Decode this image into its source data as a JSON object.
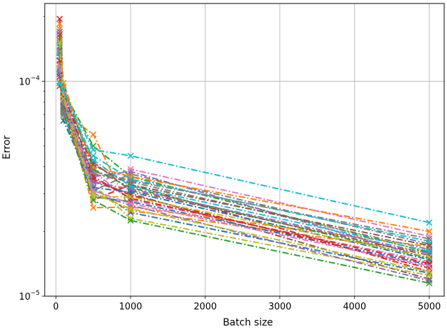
{
  "chart_data": {
    "type": "line",
    "xlabel": "Batch size",
    "ylabel": "Error",
    "x": [
      50,
      100,
      500,
      1000,
      5000
    ],
    "xlim": [
      -150,
      5200
    ],
    "ylim": [
      1e-05,
      0.00023
    ],
    "yscale": "log",
    "grid": true,
    "x_ticks": [
      {
        "value": 0,
        "label": "0"
      },
      {
        "value": 1000,
        "label": "1000"
      },
      {
        "value": 2000,
        "label": "2000"
      },
      {
        "value": 3000,
        "label": "3000"
      },
      {
        "value": 4000,
        "label": "4000"
      },
      {
        "value": 5000,
        "label": "5000"
      }
    ],
    "y_ticks": [
      {
        "value": 1e-05,
        "base": "10",
        "exp": "−5"
      },
      {
        "value": 0.0001,
        "base": "10",
        "exp": "−4"
      }
    ],
    "line_style": "dash-dot",
    "marker": "x",
    "palette": [
      "#1f77b4",
      "#ff7f0e",
      "#2ca02c",
      "#d62728",
      "#9467bd",
      "#8c564b",
      "#e377c2",
      "#7f7f7f",
      "#bcbd22",
      "#17becf"
    ],
    "series": [
      {
        "values": [
          0.000145,
          6.55e-05,
          3.2e-05,
          2.45e-05,
          1.28e-05
        ]
      },
      {
        "values": [
          0.000175,
          7.2e-05,
          5.65e-05,
          2.5e-05,
          1.6e-05
        ]
      },
      {
        "values": [
          0.00014,
          9e-05,
          5e-05,
          3.6e-05,
          1.6e-05
        ]
      },
      {
        "values": [
          0.000195,
          8e-05,
          2.8e-05,
          3.3e-05,
          1.3e-05
        ]
      },
      {
        "values": [
          0.00012,
          8.5e-05,
          3.6e-05,
          3.8e-05,
          1.5e-05
        ]
      },
      {
        "values": [
          0.00013,
          7.6e-05,
          3.4e-05,
          3e-05,
          1.2e-05
        ]
      },
      {
        "values": [
          0.00011,
          8.2e-05,
          3.8e-05,
          2.8e-05,
          1.45e-05
        ]
      },
      {
        "values": [
          0.000125,
          7.8e-05,
          3.1e-05,
          3.7e-05,
          1.75e-05
        ]
      },
      {
        "values": [
          0.0001,
          6.9e-05,
          3.3e-05,
          2.3e-05,
          1.25e-05
        ]
      },
      {
        "values": [
          0.00015,
          8.8e-05,
          4.8e-05,
          4.5e-05,
          2.2e-05
        ]
      },
      {
        "values": [
          0.000135,
          7.4e-05,
          2.9e-05,
          2.75e-05,
          1.4e-05
        ]
      },
      {
        "values": [
          0.00016,
          8.1e-05,
          2.58e-05,
          2.6e-05,
          1.7e-05
        ]
      },
      {
        "values": [
          0.000115,
          9.3e-05,
          3.9e-05,
          3.2e-05,
          1.5e-05
        ]
      },
      {
        "values": [
          0.000105,
          7.7e-05,
          3.5e-05,
          2.95e-05,
          1.35e-05
        ]
      },
      {
        "values": [
          0.00017,
          7e-05,
          3e-05,
          2.65e-05,
          1.18e-05
        ]
      },
      {
        "values": [
          9.5e-05,
          8.6e-05,
          4.2e-05,
          3.1e-05,
          1.55e-05
        ]
      },
      {
        "values": [
          0.00014,
          7.9e-05,
          3.3e-05,
          3.9e-05,
          1.9e-05
        ]
      },
      {
        "values": [
          0.000155,
          7.3e-05,
          3.7e-05,
          3.4e-05,
          1.65e-05
        ]
      },
      {
        "values": [
          0.00012,
          9.5e-05,
          3e-05,
          2.55e-05,
          1.3e-05
        ]
      },
      {
        "values": [
          0.00013,
          7.5e-05,
          4.5e-05,
          3.5e-05,
          1.8e-05
        ]
      },
      {
        "values": [
          0.000108,
          8.4e-05,
          3.2e-05,
          3.05e-05,
          1.48e-05
        ]
      },
      {
        "values": [
          0.000185,
          9.8e-05,
          4e-05,
          3.6e-05,
          2e-05
        ]
      },
      {
        "values": [
          0.000145,
          7.15e-05,
          2.8e-05,
          2.25e-05,
          1.15e-05
        ]
      },
      {
        "values": [
          0.000125,
          8.9e-05,
          3.6e-05,
          2.85e-05,
          1.42e-05
        ]
      },
      {
        "values": [
          0.000112,
          7.95e-05,
          3.4e-05,
          3.15e-05,
          1.58e-05
        ]
      },
      {
        "values": [
          0.000165,
          7.6e-05,
          4.1e-05,
          3.3e-05,
          1.72e-05
        ]
      },
      {
        "values": [
          0.000118,
          8.7e-05,
          3.1e-05,
          2.7e-05,
          1.38e-05
        ]
      },
      {
        "values": [
          0.000138,
          7.25e-05,
          3.8e-05,
          3.45e-05,
          1.85e-05
        ]
      },
      {
        "values": [
          0.000152,
          8.3e-05,
          2.9e-05,
          2.9e-05,
          1.52e-05
        ]
      },
      {
        "values": [
          9.8e-05,
          9.1e-05,
          4.3e-05,
          3.25e-05,
          1.62e-05
        ]
      }
    ]
  }
}
